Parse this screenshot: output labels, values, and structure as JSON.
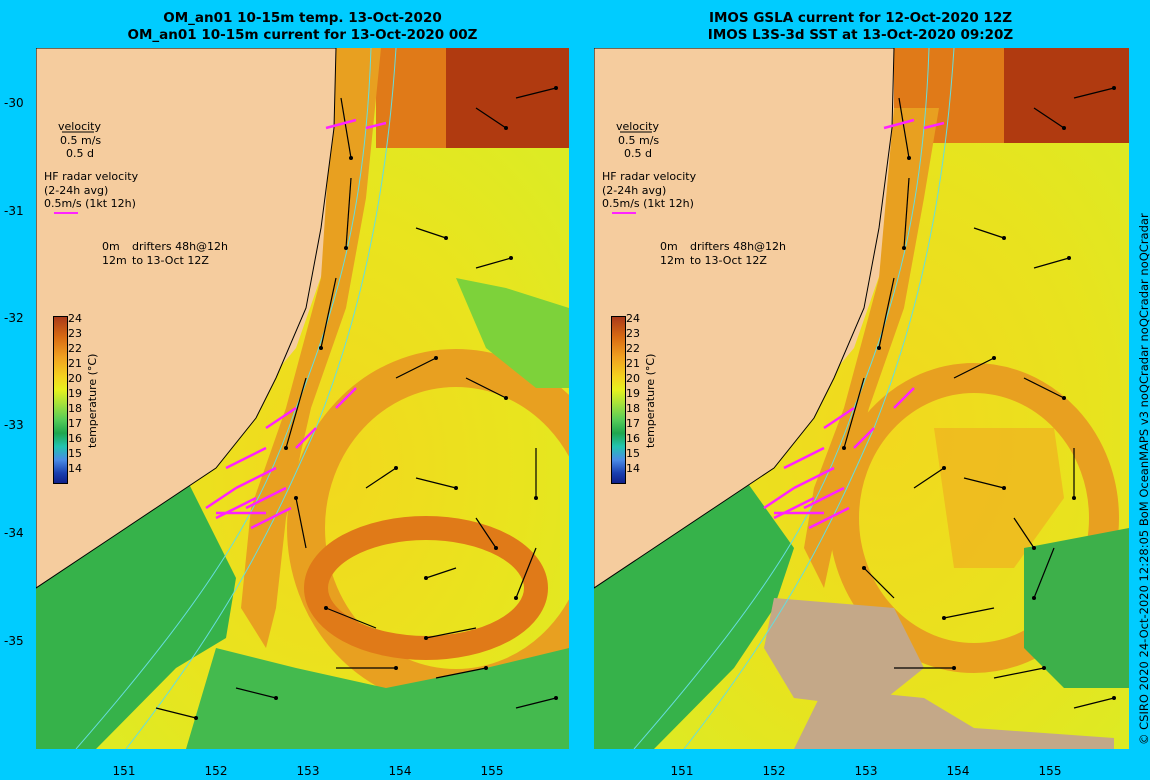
{
  "left_title": {
    "line1": "OM_an01 10-15m temp. 13-Oct-2020",
    "line2": "OM_an01 10-15m current for 13-Oct-2020 00Z"
  },
  "right_title": {
    "line1": "IMOS GSLA current for 12-Oct-2020 12Z",
    "line2": "IMOS L3S-3d SST at 13-Oct-2020 09:20Z"
  },
  "y_ticks": [
    "-30",
    "-31",
    "-32",
    "-33",
    "-34",
    "-35"
  ],
  "x_ticks": [
    "151",
    "152",
    "153",
    "154",
    "155"
  ],
  "legend": {
    "velocity": "velocity",
    "vel_scale": "0.5 m/s",
    "vel_time": "0.5 d",
    "hf_title": "HF radar velocity",
    "hf_avg": "(2-24h avg)",
    "hf_scale": "0.5m/s (1kt 12h)",
    "drifter_0m": "0m",
    "drifter_12m": "12m",
    "drifters_text": "drifters 48h@12h",
    "drifters_to": "to 13-Oct 12Z"
  },
  "colorbar": {
    "labels": [
      "24",
      "23",
      "22",
      "21",
      "20",
      "19",
      "18",
      "17",
      "16",
      "15",
      "14"
    ],
    "title": "temperature (°C)"
  },
  "credit": "© CSIRO 2020   24-Oct-2020 12:28:05 BoM OceanMAPS v3 noQCradar noQCradar noQCradar",
  "colors": {
    "background": "#00CCFF",
    "land": "#F5CC9E",
    "hf_radar": "#FF22FF",
    "isobath": "#66DDDD",
    "warm_core": "#E89A22",
    "east_australian_current": "#E07A18"
  }
}
